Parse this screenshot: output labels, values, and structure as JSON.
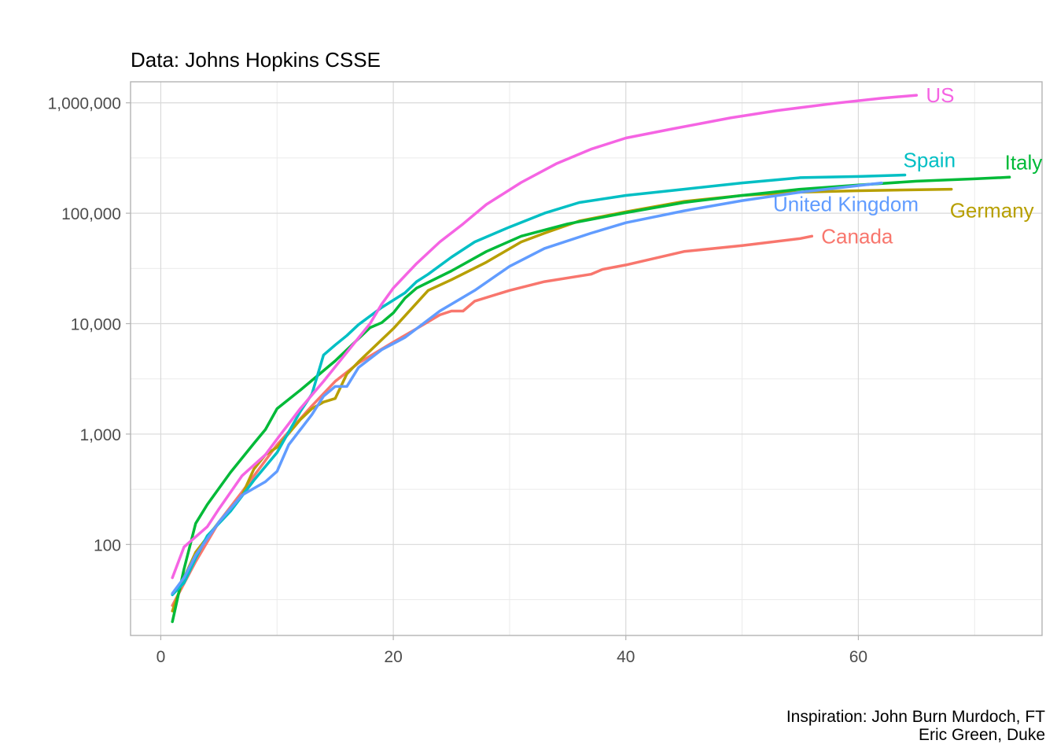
{
  "chart_data": {
    "type": "line",
    "title": "",
    "subtitle": "Data: Johns Hopkins CSSE",
    "caption": [
      "Inspiration: John Burn Murdoch, FT",
      "Eric Green, Duke"
    ],
    "xlabel": "",
    "ylabel": "",
    "xlim": [
      -2.6,
      75.8
    ],
    "ylim": [
      15,
      1550000
    ],
    "yscale": "log10",
    "grid": true,
    "legend": "direct labels at line ends",
    "x_ticks": [
      0,
      20,
      40,
      60
    ],
    "x_tick_labels": [
      "0",
      "20",
      "40",
      "60"
    ],
    "y_ticks": [
      100,
      1000,
      10000,
      100000,
      1000000
    ],
    "y_tick_labels": [
      "100",
      "1,000",
      "10,000",
      "100,000",
      "1,000,000"
    ],
    "series": [
      {
        "name": "Canada",
        "color": "#F8766D",
        "x": [
          1,
          3,
          5,
          7,
          10,
          13,
          15,
          17,
          20,
          22,
          24,
          25,
          26,
          27,
          30,
          33,
          37,
          38,
          40,
          45,
          50,
          55,
          56
        ],
        "y": [
          28,
          70,
          160,
          300,
          800,
          1800,
          3000,
          4400,
          6800,
          9000,
          12000,
          13000,
          13000,
          16000,
          20000,
          24000,
          28000,
          31000,
          34000,
          45000,
          51000,
          59000,
          62000
        ]
      },
      {
        "name": "Germany",
        "color": "#B79F00",
        "x": [
          1,
          2,
          3,
          5,
          7,
          8,
          9,
          10,
          12,
          13,
          14,
          15,
          16,
          17,
          20,
          23,
          25,
          28,
          31,
          33,
          36,
          40,
          45,
          50,
          55,
          60,
          68
        ],
        "y": [
          25,
          50,
          85,
          160,
          280,
          480,
          650,
          760,
          1350,
          1700,
          1950,
          2100,
          3500,
          4500,
          9000,
          20000,
          25000,
          36000,
          55000,
          66000,
          85000,
          103000,
          128000,
          145000,
          155000,
          160000,
          165000
        ]
      },
      {
        "name": "Italy",
        "color": "#00BA38",
        "x": [
          1,
          2,
          3,
          4,
          6,
          8,
          9,
          10,
          12,
          15,
          18,
          19,
          20,
          21,
          22,
          25,
          28,
          31,
          35,
          40,
          45,
          50,
          55,
          60,
          65,
          70,
          73
        ],
        "y": [
          20,
          60,
          155,
          230,
          450,
          820,
          1100,
          1700,
          2500,
          4600,
          9200,
          10200,
          12500,
          17000,
          21000,
          30000,
          45000,
          62000,
          80000,
          101000,
          125000,
          145000,
          165000,
          180000,
          195000,
          205000,
          212000
        ]
      },
      {
        "name": "Spain",
        "color": "#00BFC4",
        "x": [
          1,
          2,
          3,
          4,
          6,
          8,
          10,
          12,
          13,
          14,
          15,
          16,
          17,
          19,
          21,
          22,
          23,
          25,
          27,
          30,
          33,
          36,
          40,
          45,
          50,
          55,
          60,
          64
        ],
        "y": [
          35,
          45,
          75,
          120,
          200,
          380,
          680,
          1600,
          2300,
          5200,
          6400,
          7800,
          9800,
          14000,
          19000,
          24000,
          28000,
          40000,
          55000,
          75000,
          100000,
          125000,
          145000,
          165000,
          188000,
          210000,
          215000,
          222000
        ]
      },
      {
        "name": "United Kingdom",
        "color": "#619CFF",
        "x": [
          1,
          2,
          3,
          5,
          7,
          9,
          10,
          11,
          13,
          14,
          15,
          16,
          17,
          19,
          21,
          24,
          27,
          30,
          33,
          37,
          40,
          45,
          50,
          55,
          60,
          62
        ],
        "y": [
          36,
          50,
          80,
          160,
          280,
          370,
          460,
          800,
          1500,
          2200,
          2700,
          2700,
          4000,
          5800,
          7500,
          13000,
          20000,
          33000,
          48000,
          66000,
          82000,
          105000,
          130000,
          155000,
          178000,
          188000
        ]
      },
      {
        "name": "US",
        "color": "#F564E3",
        "x": [
          1,
          2,
          4,
          5,
          7,
          9,
          10,
          12,
          14,
          16,
          18,
          19,
          20,
          22,
          24,
          26,
          28,
          31,
          34,
          37,
          40,
          44,
          49,
          53,
          58,
          62,
          65
        ],
        "y": [
          50,
          95,
          145,
          210,
          420,
          650,
          900,
          1700,
          3000,
          5500,
          10000,
          15000,
          21000,
          35000,
          55000,
          80000,
          120000,
          190000,
          280000,
          380000,
          480000,
          580000,
          730000,
          850000,
          990000,
          1100000,
          1170000
        ]
      }
    ]
  }
}
